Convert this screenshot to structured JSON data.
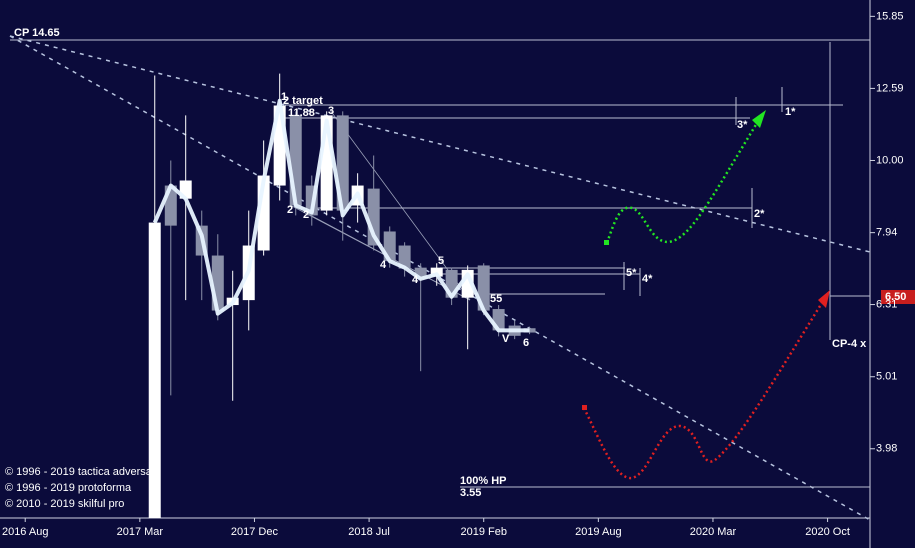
{
  "chart_data": {
    "type": "candlestick",
    "log_scale": true,
    "ylim": [
      3.19,
      16.7
    ],
    "yticks": [
      {
        "value": 15.85,
        "label": "15.85"
      },
      {
        "value": 12.59,
        "label": "12.59"
      },
      {
        "value": 10,
        "label": "10.00"
      },
      {
        "value": 7.94,
        "label": "7.94"
      },
      {
        "value": 6.31,
        "label": "6.31"
      },
      {
        "value": 5.01,
        "label": "5.01"
      },
      {
        "value": 3.98,
        "label": "3.98"
      }
    ],
    "xlim": [
      -0.22,
      7.37
    ],
    "xticks": [
      {
        "value": 0,
        "label": "2016 Aug"
      },
      {
        "value": 1,
        "label": "2017 Mar"
      },
      {
        "value": 2,
        "label": "2017 Dec"
      },
      {
        "value": 3,
        "label": "2018 Jul"
      },
      {
        "value": 4,
        "label": "2019 Feb"
      },
      {
        "value": 5,
        "label": "2019 Aug"
      },
      {
        "value": 6,
        "label": "2020 Mar"
      },
      {
        "value": 7,
        "label": "2020 Oct"
      }
    ],
    "up_color": "#ffffff",
    "down_color": "#8a90a8",
    "line_color": "#e8f4ff",
    "x": [
      1.13,
      1.27,
      1.4,
      1.54,
      1.68,
      1.81,
      1.95,
      2.08,
      2.22,
      2.36,
      2.5,
      2.63,
      2.77,
      2.9,
      3.04,
      3.18,
      3.31,
      3.45,
      3.59,
      3.72,
      3.86,
      4.0,
      4.13,
      4.27,
      4.4
    ],
    "open": [
      3.0,
      9.23,
      8.85,
      8.12,
      7.38,
      6.3,
      6.4,
      7.5,
      9.23,
      11.55,
      9.23,
      8.52,
      11.55,
      8.66,
      9.14,
      7.97,
      7.62,
      7.1,
      6.9,
      7.05,
      6.45,
      7.15,
      6.22,
      5.9,
      5.85
    ],
    "high": [
      13.12,
      10.0,
      11.55,
      8.52,
      7.9,
      7.03,
      8.52,
      10.66,
      13.2,
      11.7,
      9.53,
      11.7,
      11.7,
      9.6,
      10.16,
      8.1,
      7.7,
      7.2,
      7.2,
      7.1,
      7.15,
      7.2,
      6.3,
      6.0,
      5.88
    ],
    "low": [
      3.0,
      4.72,
      6.4,
      6.4,
      6.0,
      4.64,
      5.81,
      7.38,
      8.8,
      8.39,
      8.12,
      8.39,
      7.74,
      8.2,
      7.5,
      7.1,
      6.9,
      5.1,
      6.7,
      6.3,
      5.47,
      6.1,
      5.7,
      5.65,
      5.74
    ],
    "close": [
      8.2,
      8.12,
      9.38,
      7.38,
      6.19,
      6.45,
      7.62,
      9.53,
      11.92,
      8.66,
      8.39,
      11.55,
      8.52,
      9.23,
      7.62,
      7.25,
      7.08,
      6.85,
      7.1,
      6.45,
      7.05,
      6.19,
      5.81,
      5.71,
      5.77
    ],
    "line_values": [
      8.2,
      9.23,
      8.85,
      7.87,
      6.13,
      6.34,
      7.03,
      9.38,
      12.1,
      8.66,
      8.47,
      11.36,
      8.39,
      9.0,
      7.87,
      7.25,
      7.1,
      6.85,
      6.95,
      6.47,
      6.95,
      6.19,
      5.81,
      5.81,
      5.81
    ],
    "annotations": {
      "cp": "CP 14.65",
      "target": "2 target",
      "target_value": "11.88",
      "hp": "100% HP",
      "hp_value": "3.55",
      "price": "6.50",
      "cp4": "CP-4 x",
      "w1": "1",
      "w2": "2",
      "w2b": "2",
      "w3": "3",
      "w4": "4",
      "w4b": "4",
      "w5": "5",
      "w5b": "55",
      "w6": "6",
      "wv": "V",
      "s1": "1*",
      "s2": "2*",
      "s3": "3*",
      "s4": "4*",
      "s5": "5*",
      "copy1": "© 1996 - 2019 tactica adversa",
      "copy2": "© 1996 - 2019 protoforma",
      "copy3": "© 2010 - 2019 skilful pro"
    }
  }
}
